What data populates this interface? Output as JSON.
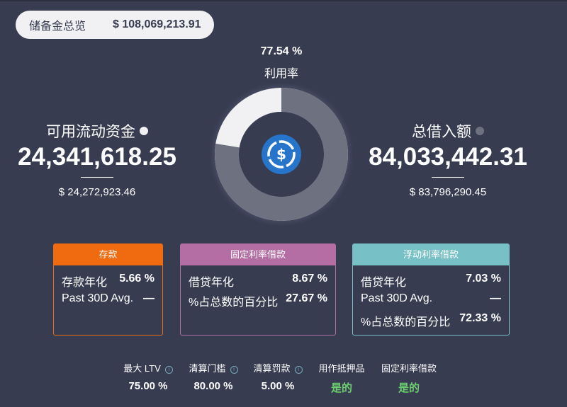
{
  "reserve": {
    "label": "储备金总览",
    "value": "$ 108,069,213.91"
  },
  "utilization": {
    "value": "77.54 %",
    "label": "利用率",
    "fraction": 0.7754
  },
  "available": {
    "label": "可用流动资金",
    "amount": "24,341,618.25",
    "usd": "$ 24,272,923.46",
    "dot_color": "#f1f1f3"
  },
  "borrowed": {
    "label": "总借入额",
    "amount": "84,033,442.31",
    "usd": "$ 83,796,290.45",
    "dot_color": "#6e7180"
  },
  "center_icon": "usdc-icon",
  "cards": [
    {
      "title": "存款",
      "color": "#f06a0f",
      "rows": [
        {
          "label": "存款年化",
          "value": "5.66 %"
        },
        {
          "label": "Past 30D Avg.",
          "value": "—"
        }
      ]
    },
    {
      "title": "固定利率借款",
      "color": "#b46ea3",
      "rows": [
        {
          "label": "借贷年化",
          "value": "8.67 %"
        },
        {
          "label": "%占总数的百分比",
          "value": "27.67 %"
        }
      ]
    },
    {
      "title": "浮动利率借款",
      "color": "#76c0c6",
      "rows": [
        {
          "label": "借贷年化",
          "value": "7.03 %"
        },
        {
          "label": "Past 30D Avg.",
          "value": "—"
        },
        {
          "label": "%占总数的百分比",
          "value": "72.33 %"
        }
      ]
    }
  ],
  "stats": [
    {
      "label": "最大 LTV",
      "value": "75.00 %",
      "info": true
    },
    {
      "label": "清算门槛",
      "value": "80.00 %",
      "info": true
    },
    {
      "label": "清算罚款",
      "value": "5.00 %",
      "info": true
    },
    {
      "label": "用作抵押品",
      "value": "是的",
      "info": false
    },
    {
      "label": "固定利率借款",
      "value": "是的",
      "info": false
    }
  ],
  "colors": {
    "background": "#383c51",
    "yes": "#6ccf6e"
  }
}
